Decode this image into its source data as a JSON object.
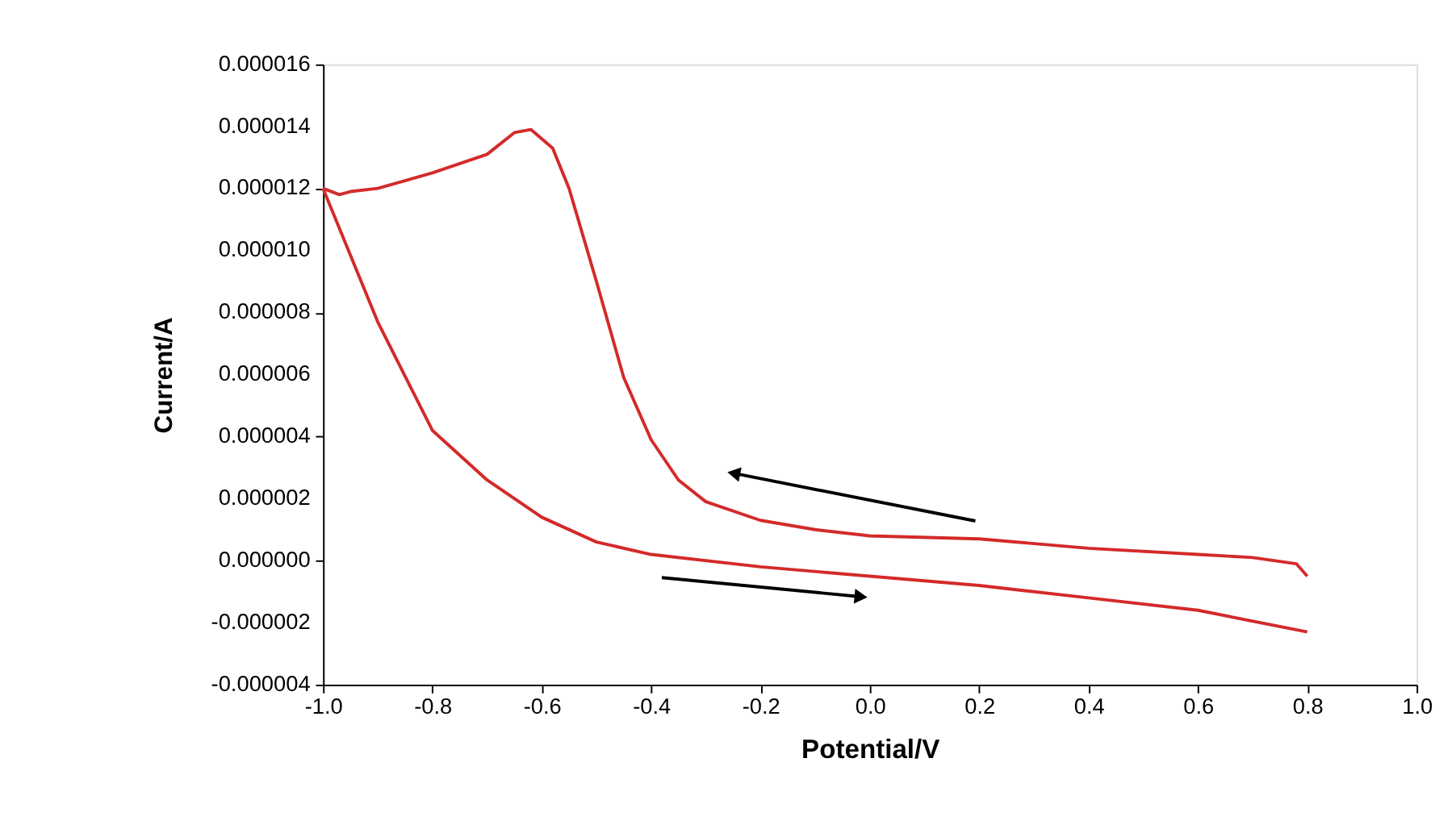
{
  "chart_data": {
    "type": "line",
    "xlabel": "Potential/V",
    "ylabel": "Current/A",
    "xlim": [
      -1.0,
      1.0
    ],
    "xticks": [
      {
        "value": -1.0,
        "label": "-1.0"
      },
      {
        "value": -0.8,
        "label": "-0.8"
      },
      {
        "value": -0.6,
        "label": "-0.6"
      },
      {
        "value": -0.4,
        "label": "-0.4"
      },
      {
        "value": -0.2,
        "label": "-0.2"
      },
      {
        "value": 0.0,
        "label": "0.0"
      },
      {
        "value": 0.2,
        "label": "0.2"
      },
      {
        "value": 0.4,
        "label": "0.4"
      },
      {
        "value": 0.6,
        "label": "0.6"
      },
      {
        "value": 0.8,
        "label": "0.8"
      },
      {
        "value": 1.0,
        "label": "1.0"
      }
    ],
    "ylim": [
      -4e-06,
      1.6e-05
    ],
    "yticks": [
      {
        "value": -4e-06,
        "label": "-0.000004"
      },
      {
        "value": -2e-06,
        "label": "-0.000002"
      },
      {
        "value": 0.0,
        "label": "0.000000"
      },
      {
        "value": 2e-06,
        "label": "0.000002"
      },
      {
        "value": 4e-06,
        "label": "0.000004"
      },
      {
        "value": 6e-06,
        "label": "0.000006"
      },
      {
        "value": 8e-06,
        "label": "0.000008"
      },
      {
        "value": 1e-05,
        "label": "0.000010"
      },
      {
        "value": 1.2e-05,
        "label": "0.000012"
      },
      {
        "value": 1.4e-05,
        "label": "0.000014"
      },
      {
        "value": 1.6e-05,
        "label": "0.000016"
      }
    ],
    "grid": false,
    "marker": "none",
    "line_style": "solid",
    "series": [
      {
        "color": "#d42a2a",
        "x": [
          -1.0,
          -0.9,
          -0.8,
          -0.7,
          -0.6,
          -0.5,
          -0.4,
          -0.2,
          0.0,
          0.2,
          0.4,
          0.6,
          0.8
        ],
        "values": [
          1.2e-05,
          7.7e-06,
          4.2e-06,
          2.6e-06,
          1.4e-06,
          6e-07,
          2e-07,
          -2e-07,
          -5e-07,
          -8e-07,
          -1.2e-06,
          -1.6e-06,
          -2.3e-06
        ]
      },
      {
        "color": "#d42a2a",
        "x": [
          0.8,
          0.78,
          0.7,
          0.6,
          0.4,
          0.2,
          0.0,
          -0.1,
          -0.2,
          -0.3,
          -0.35,
          -0.4,
          -0.45,
          -0.5,
          -0.55,
          -0.58,
          -0.62,
          -0.65,
          -0.7,
          -0.8,
          -0.9,
          -0.95,
          -0.97,
          -1.0
        ],
        "values": [
          -5e-07,
          -1e-07,
          1e-07,
          2e-07,
          4e-07,
          7e-07,
          8e-07,
          1e-06,
          1.3e-06,
          1.9e-06,
          2.6e-06,
          3.9e-06,
          5.9e-06,
          9e-06,
          1.2e-05,
          1.33e-05,
          1.39e-05,
          1.38e-05,
          1.31e-05,
          1.25e-05,
          1.2e-05,
          1.19e-05,
          1.18e-05,
          1.2e-05
        ]
      }
    ]
  }
}
